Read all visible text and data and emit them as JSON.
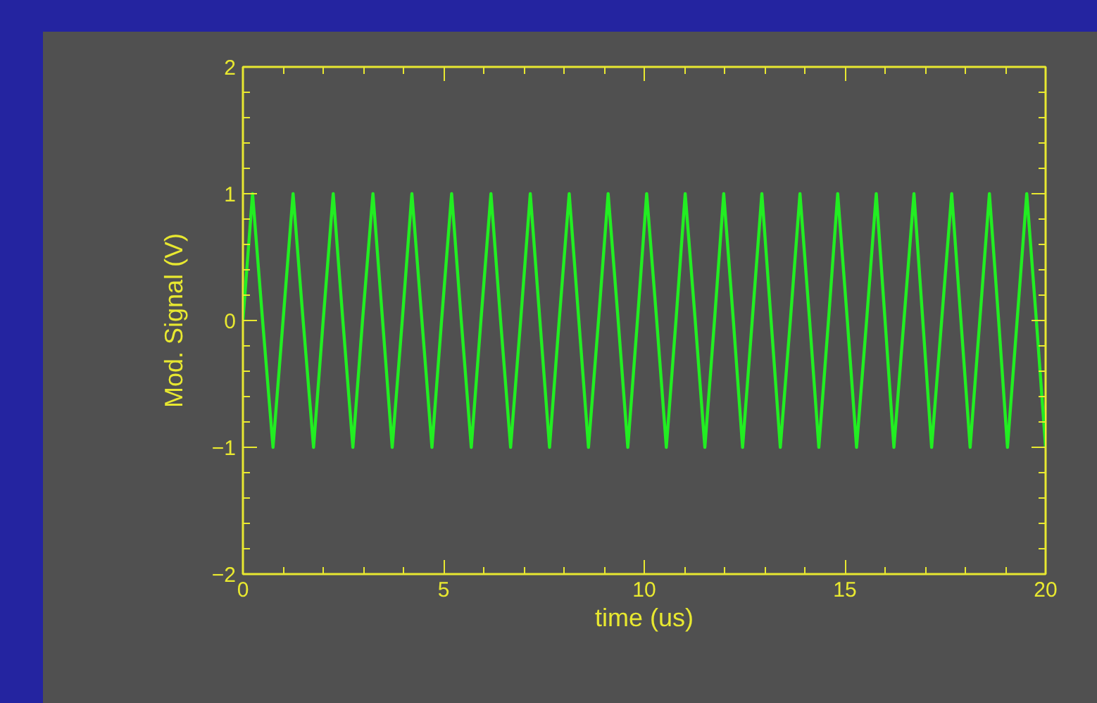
{
  "chart_data": {
    "type": "line",
    "xlabel": "time (us)",
    "ylabel": "Mod. Signal (V)",
    "xlim": [
      0,
      20
    ],
    "ylim": [
      -2,
      2
    ],
    "xticks": [
      0,
      {
        "value": 1,
        "label": null
      },
      {
        "value": 2,
        "label": null
      },
      {
        "value": 3,
        "label": null
      },
      {
        "value": 4,
        "label": null
      },
      5,
      {
        "value": 6,
        "label": null
      },
      {
        "value": 7,
        "label": null
      },
      {
        "value": 8,
        "label": null
      },
      {
        "value": 9,
        "label": null
      },
      10,
      {
        "value": 11,
        "label": null
      },
      {
        "value": 12,
        "label": null
      },
      {
        "value": 13,
        "label": null
      },
      {
        "value": 14,
        "label": null
      },
      15,
      {
        "value": 16,
        "label": null
      },
      {
        "value": 17,
        "label": null
      },
      {
        "value": 18,
        "label": null
      },
      {
        "value": 19,
        "label": null
      },
      20
    ],
    "yticks": [
      -2,
      {
        "value": -1.8,
        "label": null
      },
      {
        "value": -1.6,
        "label": null
      },
      {
        "value": -1.4,
        "label": null
      },
      {
        "value": -1.2,
        "label": null
      },
      -1,
      {
        "value": -0.8,
        "label": null
      },
      {
        "value": -0.6,
        "label": null
      },
      {
        "value": -0.4,
        "label": null
      },
      {
        "value": -0.2,
        "label": null
      },
      0,
      {
        "value": 0.2,
        "label": null
      },
      {
        "value": 0.4,
        "label": null
      },
      {
        "value": 0.6,
        "label": null
      },
      {
        "value": 0.8,
        "label": null
      },
      1,
      {
        "value": 1.2,
        "label": null
      },
      {
        "value": 1.4,
        "label": null
      },
      {
        "value": 1.6,
        "label": null
      },
      {
        "value": 1.8,
        "label": null
      },
      2
    ],
    "grid": false,
    "marker": "none",
    "line_style": "solid",
    "series": [
      {
        "color": "#22ee22",
        "x": [
          0,
          0.24,
          0.49,
          0.75,
          1.0,
          1.25,
          1.5,
          1.76,
          2.0,
          2.25,
          2.49,
          2.74,
          2.98,
          3.24,
          3.48,
          3.72,
          3.97,
          4.21,
          4.46,
          4.71,
          4.95,
          5.2,
          5.44,
          5.69,
          5.93,
          6.18,
          6.42,
          6.67,
          6.92,
          7.16,
          7.4,
          7.64,
          7.88,
          8.13,
          8.37,
          8.61,
          8.86,
          9.1,
          9.35,
          9.59,
          9.83,
          10.06,
          10.31,
          10.55,
          10.79,
          11.02,
          11.27,
          11.51,
          11.75,
          11.98,
          12.22,
          12.45,
          12.69,
          12.93,
          13.16,
          13.39,
          13.64,
          13.88,
          14.12,
          14.35,
          14.59,
          14.82,
          15.06,
          15.29,
          15.54,
          15.78,
          16.0,
          16.22,
          16.47,
          16.72,
          16.94,
          17.16,
          17.41,
          17.66,
          17.89,
          18.12,
          18.36,
          18.6,
          18.83,
          19.05,
          19.29,
          19.53,
          19.77,
          20.0
        ],
        "values": [
          0,
          1,
          0,
          -1,
          0,
          1,
          0,
          -1,
          0,
          1,
          0,
          -1,
          0,
          1,
          0,
          -1,
          0,
          1,
          0,
          -1,
          0,
          1,
          0,
          -1,
          0,
          1,
          0,
          -1,
          0,
          1,
          0,
          -1,
          0,
          1,
          0,
          -1,
          0,
          1,
          0,
          -1,
          0,
          1,
          0,
          -1,
          0,
          1,
          0,
          -1,
          0,
          1,
          0,
          -1,
          0,
          1,
          0,
          -1,
          0,
          1,
          0,
          -1,
          0,
          1,
          0,
          -1,
          0,
          1,
          0,
          -1,
          0,
          1,
          0,
          -1,
          0,
          1,
          0,
          -1,
          0,
          1,
          0,
          -1,
          0,
          1,
          0,
          -1
        ]
      }
    ]
  }
}
